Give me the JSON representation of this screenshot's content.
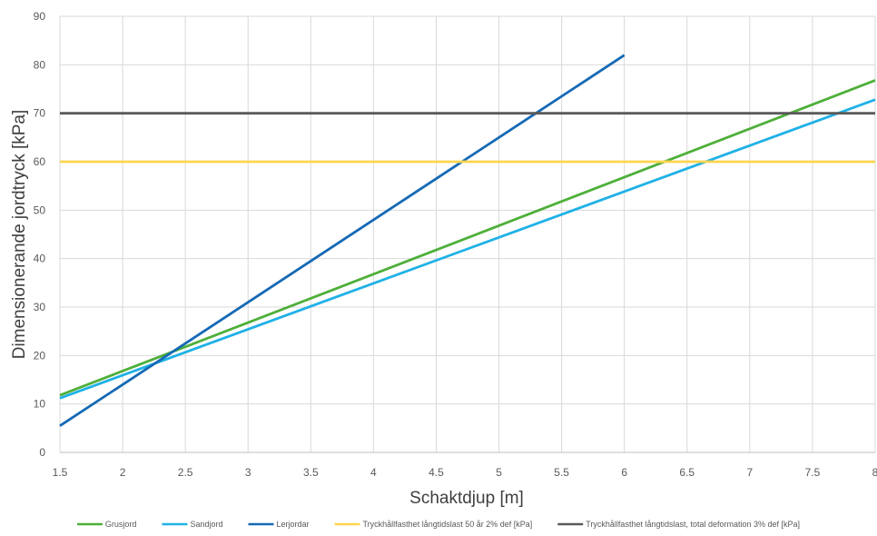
{
  "chart_data": {
    "type": "line",
    "xlabel": "Schaktdjup [m]",
    "ylabel": "Dimensionerande jordtryck [kPa]",
    "xlim": [
      1.5,
      8
    ],
    "ylim": [
      0,
      90
    ],
    "x_ticks": [
      "1.5",
      "2",
      "2.5",
      "3",
      "3.5",
      "4",
      "4.5",
      "5",
      "5.5",
      "6",
      "6.5",
      "7",
      "7.5",
      "8"
    ],
    "y_ticks": [
      "0",
      "10",
      "20",
      "30",
      "40",
      "50",
      "60",
      "70",
      "80",
      "90"
    ],
    "grid": true,
    "legend_position": "bottom",
    "series": [
      {
        "name": "Grusjord",
        "color": "#4EAF3A",
        "x": [
          1.5,
          8
        ],
        "y": [
          11.8,
          76.8
        ]
      },
      {
        "name": "Sandjord",
        "color": "#1FB1E6",
        "x": [
          1.5,
          8
        ],
        "y": [
          11.2,
          72.8
        ]
      },
      {
        "name": "Lerjordar",
        "color": "#1569B5",
        "x": [
          1.5,
          6
        ],
        "y": [
          5.5,
          82
        ]
      },
      {
        "name": "Tryckhållfasthet långtidslast 50 år 2% def [kPa]",
        "color": "#FFD54F",
        "x": [
          1.5,
          8
        ],
        "y": [
          60,
          60
        ]
      },
      {
        "name": "Tryckhållfasthet långtidslast, total deformation 3% def [kPa]",
        "color": "#5A5A5A",
        "x": [
          1.5,
          8
        ],
        "y": [
          70,
          70
        ]
      }
    ]
  }
}
